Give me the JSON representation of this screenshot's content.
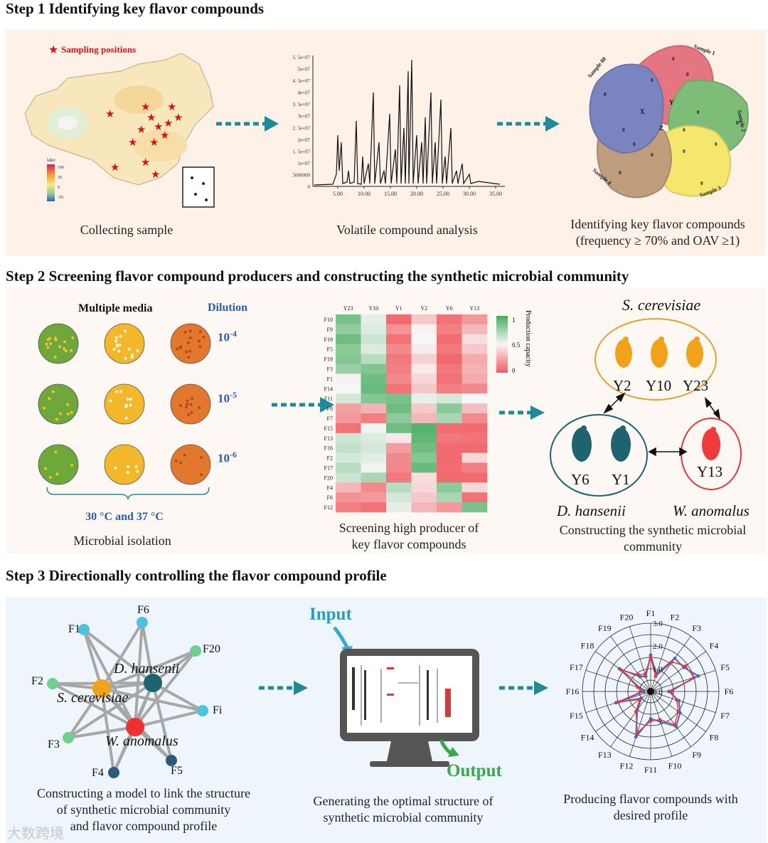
{
  "step1": {
    "title": "Step 1 Identifying key flavor compounds",
    "map_legend": "Sampling positions",
    "colorbar_title": "lake",
    "colorbar_ticks": [
      "100",
      "50",
      "0",
      "-50"
    ],
    "chrom_yticks": [
      "5. 5e+07",
      "5e+07",
      "4. 5e+07",
      "4e+07",
      "3. 5e+07",
      "3e+07",
      "2. 5e+07",
      "2e+07",
      "1. 5e+07",
      "1e+07",
      "5000000",
      "0"
    ],
    "chrom_xticks": [
      "5.00",
      "10.00",
      "15.00",
      "20.00",
      "25.00",
      "30.00",
      "35.00"
    ],
    "venn_labels": {
      "s1": "Sample 1",
      "s2": "Sample 2",
      "s3": "Sample 3",
      "s4": "Sample 4",
      "s80": "Sample 80",
      "x": "X",
      "y": "Y",
      "z": "Z",
      "zero": "0"
    },
    "captions": {
      "collect": "Collecting sample",
      "volatile": "Volatile compound analysis",
      "identify_l1": "Identifying key flavor compounds",
      "identify_l2": "(frequency ≥ 70% and OAV ≥1)"
    }
  },
  "step2": {
    "title": "Step 2 Screening flavor compound producers and constructing the synthetic microbial community",
    "multiple_media": "Multiple media",
    "dilution": "Dilution",
    "dil_base": "10",
    "dil_exps": [
      "-4",
      "-5",
      "-6"
    ],
    "temperature": "30 °C and 37 °C",
    "isolation": "Microbial isolation",
    "heatmap": {
      "columns": [
        "Y23",
        "Y10",
        "Y1",
        "Y2",
        "Y6",
        "Y13"
      ],
      "rows": [
        "F10",
        "F9",
        "F19",
        "F5",
        "F18",
        "F3",
        "F1",
        "F14",
        "F11",
        "F8",
        "F7",
        "F15",
        "F13",
        "F16",
        "F2",
        "F17",
        "F20",
        "F4",
        "F6",
        "F12"
      ],
      "values": [
        [
          0.85,
          0.55,
          0.05,
          0.35,
          0.08,
          0.2
        ],
        [
          0.78,
          0.58,
          0.18,
          0.48,
          0.12,
          0.3
        ],
        [
          0.88,
          0.62,
          0.08,
          0.5,
          0.06,
          0.42
        ],
        [
          0.8,
          0.58,
          0.15,
          0.46,
          0.1,
          0.35
        ],
        [
          0.82,
          0.68,
          0.1,
          0.38,
          0.05,
          0.25
        ],
        [
          0.76,
          0.83,
          0.12,
          0.46,
          0.1,
          0.28
        ],
        [
          0.48,
          0.88,
          0.15,
          0.4,
          0.08,
          0.25
        ],
        [
          0.5,
          0.9,
          0.08,
          0.35,
          0.12,
          0.15
        ],
        [
          0.6,
          0.82,
          0.85,
          0.55,
          0.6,
          0.5
        ],
        [
          0.22,
          0.28,
          0.88,
          0.35,
          0.8,
          0.32
        ],
        [
          0.2,
          0.12,
          0.8,
          0.3,
          0.72,
          0.15
        ],
        [
          0.08,
          0.52,
          0.88,
          0.95,
          0.06,
          0.05
        ],
        [
          0.62,
          0.58,
          0.45,
          0.92,
          0.1,
          0.08
        ],
        [
          0.65,
          0.6,
          0.22,
          0.88,
          0.05,
          0.05
        ],
        [
          0.6,
          0.56,
          0.15,
          0.82,
          0.05,
          0.4
        ],
        [
          0.68,
          0.52,
          0.15,
          0.9,
          0.06,
          0.12
        ],
        [
          0.62,
          0.72,
          0.1,
          0.42,
          0.05,
          0.05
        ],
        [
          0.3,
          0.15,
          0.68,
          0.4,
          0.8,
          0.4
        ],
        [
          0.18,
          0.2,
          0.6,
          0.35,
          0.72,
          0.08
        ],
        [
          0.12,
          0.08,
          0.55,
          0.3,
          0.2,
          0.85
        ]
      ],
      "legend_ticks": [
        "1",
        "0.5",
        "0"
      ],
      "legend_title": "Production capacity"
    },
    "screening_l1": "Screening high producer of",
    "screening_l2": "key flavor compounds",
    "s_cerevisiae": "S. cerevisiae",
    "d_hansenii": "D. hansenii",
    "w_anomalus": "W. anomalus",
    "strains_top": [
      "Y2",
      "Y10",
      "Y23"
    ],
    "strains_left": [
      "Y6",
      "Y1"
    ],
    "strains_right": [
      "Y13"
    ],
    "construct_l1": "Constructing the synthetic microbial",
    "construct_l2": "community"
  },
  "step3": {
    "title": "Step 3 Directionally controlling the flavor compound profile",
    "network_nodes": {
      "f6": "F6",
      "f1": "F1",
      "f20": "F20",
      "f2": "F2",
      "fi": "Fi",
      "f3": "F3",
      "f4": "F4",
      "f5": "F5",
      "d_hansenii": "D. hansenii",
      "s_cerevisiae": "S. cerevisiae",
      "w_anomalus": "W. anomalus"
    },
    "model_l1": "Constructing a model to link the structure",
    "model_l2": "of synthetic microbial community",
    "model_l3": "and flavor compound profile",
    "input": "Input",
    "output": "Output",
    "generate_l1": "Generating the optimal structure of",
    "generate_l2": "synthetic microbial community",
    "produce_l1": "Producing flavor compounds with",
    "produce_l2": "desired profile",
    "watermark": "大数跨境",
    "colors": {
      "cerevisiae": "#f0a21a",
      "hansenii": "#1d6470",
      "anomalus": "#ea3a3a",
      "teal": "#1f8a9a",
      "green": "#38a84a"
    },
    "chart_data": {
      "type": "radar",
      "categories": [
        "F1",
        "F2",
        "F3",
        "F4",
        "F5",
        "F6",
        "F7",
        "F8",
        "F9",
        "F10",
        "F11",
        "F12",
        "F13",
        "F14",
        "F15",
        "F16",
        "F17",
        "F18",
        "F19",
        "F20"
      ],
      "ticks": [
        "0.0",
        "1.0",
        "2.0",
        "3.0"
      ],
      "rmax": 3.0,
      "series": [
        {
          "color": "#4a63c8",
          "values": [
            1.6,
            0.8,
            1.8,
            1.8,
            2.2,
            0.8,
            1.3,
            1.6,
            1.9,
            1.4,
            1.2,
            2.1,
            1.0,
            0.5,
            1.6,
            0.3,
            0.5,
            1.7,
            0.8,
            0.7
          ]
        },
        {
          "color": "#e23a3a",
          "values": [
            1.5,
            0.7,
            1.6,
            1.9,
            2.0,
            0.9,
            1.2,
            1.5,
            1.8,
            1.3,
            1.3,
            1.9,
            1.1,
            0.6,
            1.5,
            0.4,
            0.6,
            1.6,
            0.9,
            0.8
          ]
        }
      ]
    }
  }
}
